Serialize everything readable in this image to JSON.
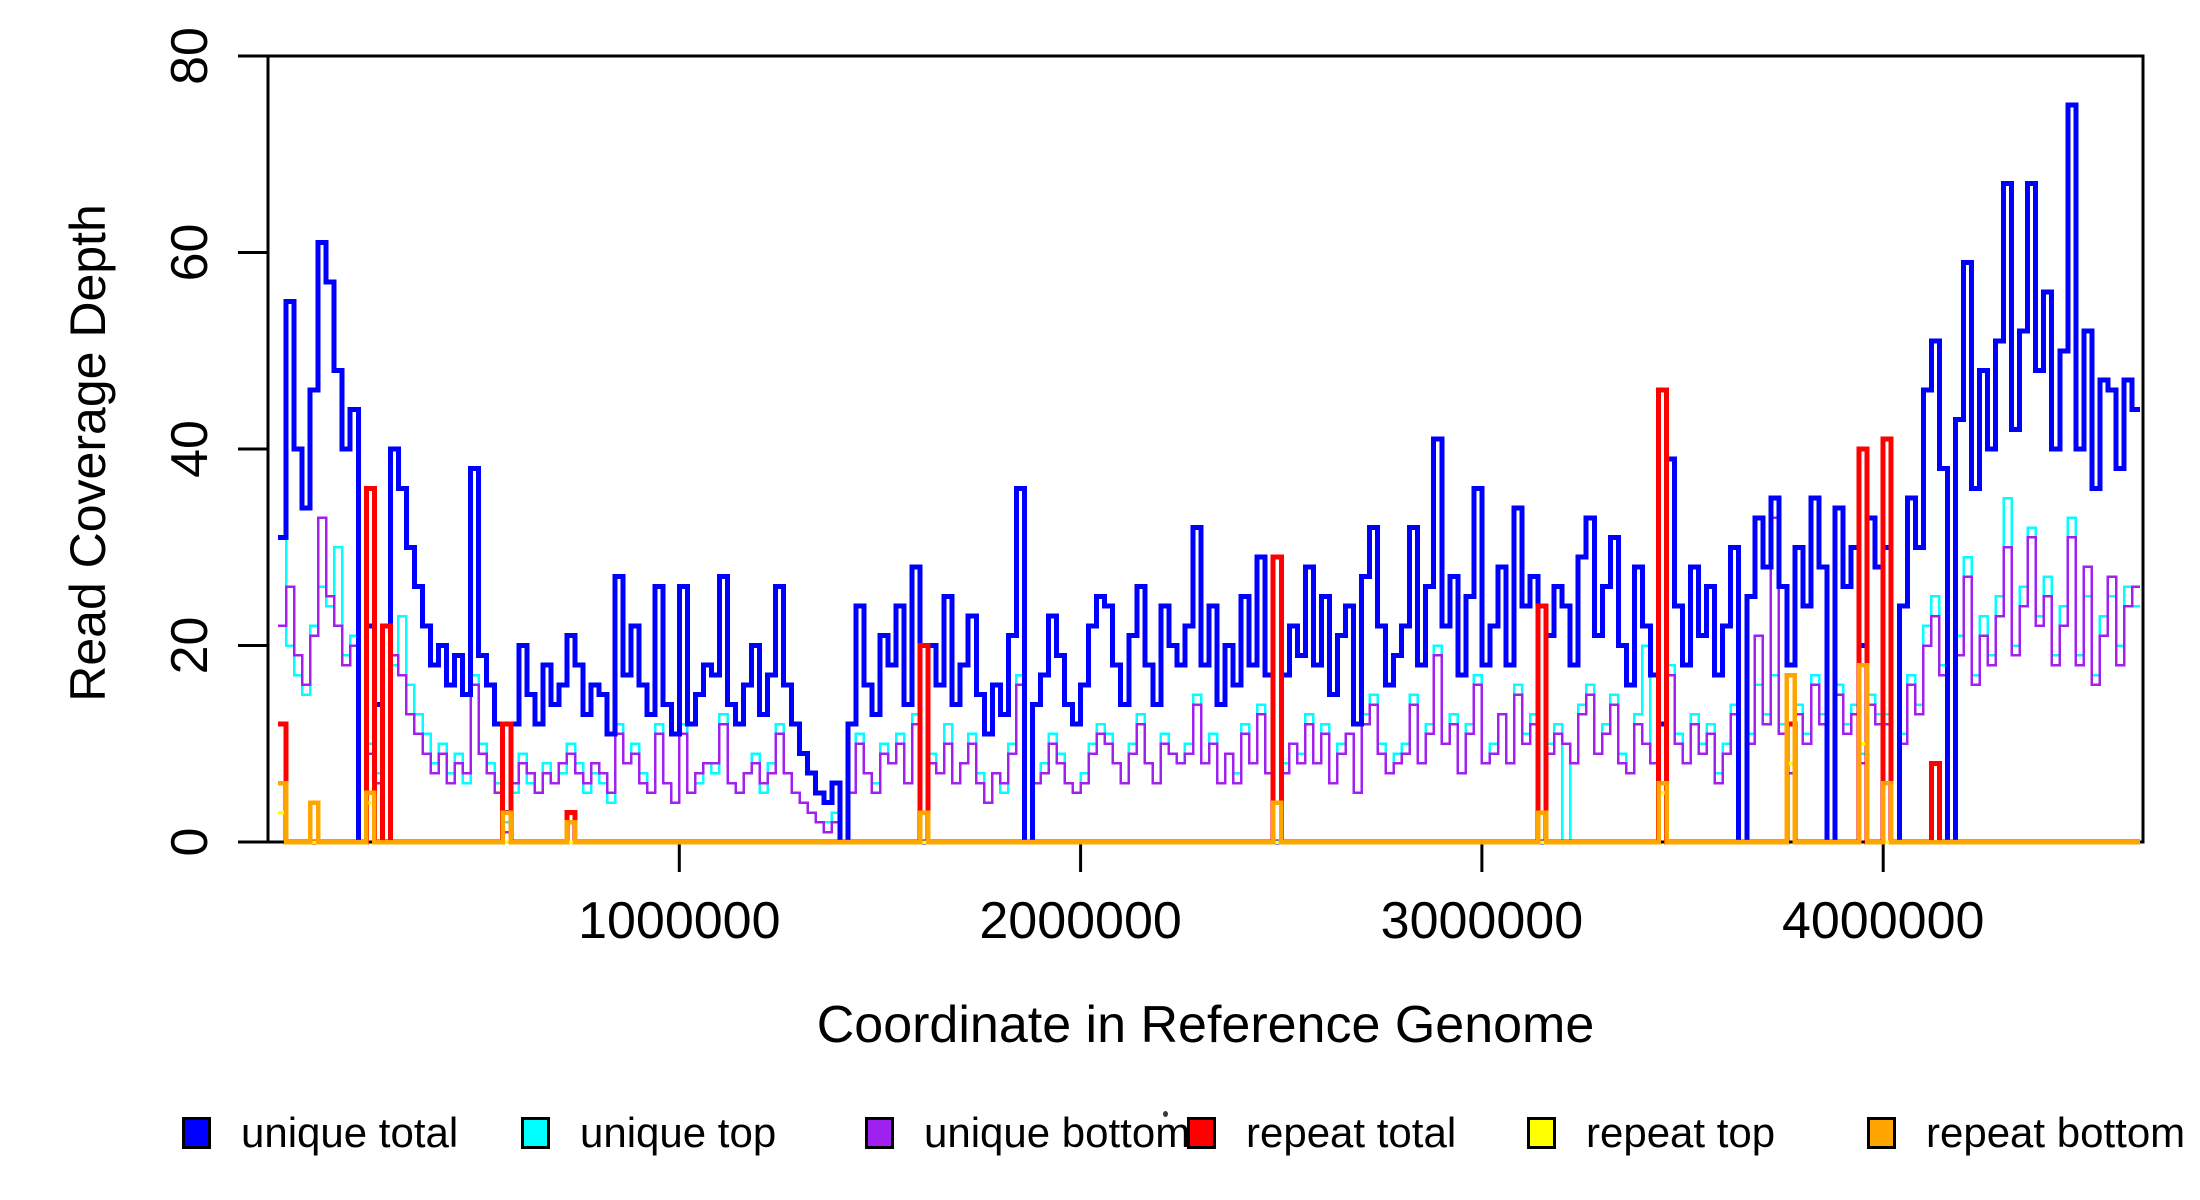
{
  "figure": {
    "background": "#ffffff",
    "frame_color": "#000000"
  },
  "chart_data": {
    "type": "line",
    "subtype": "step-coverage-plot",
    "title": "",
    "xlabel": "Coordinate in Reference Genome",
    "ylabel": "Read Coverage Depth",
    "xlim": [
      0,
      4640000
    ],
    "ylim": [
      0,
      80
    ],
    "grid": false,
    "legend_position": "bottom",
    "x_tick_values": [
      1000000,
      2000000,
      3000000,
      4000000
    ],
    "x_tick_labels": [
      "1000000",
      "2000000",
      "3000000",
      "4000000"
    ],
    "y_tick_values": [
      0,
      20,
      40,
      60,
      80
    ],
    "y_tick_labels": [
      "0",
      "20",
      "40",
      "60",
      "80"
    ],
    "bin_size": 20000,
    "n_bins": 232,
    "series": [
      {
        "name": "unique total",
        "color": "#0000ff",
        "values": [
          31,
          55,
          40,
          34,
          46,
          61,
          57,
          48,
          40,
          44,
          0,
          22,
          14,
          0,
          40,
          36,
          30,
          26,
          22,
          18,
          20,
          16,
          19,
          15,
          38,
          19,
          16,
          12,
          3,
          12,
          20,
          15,
          12,
          18,
          14,
          16,
          21,
          18,
          13,
          16,
          15,
          11,
          27,
          17,
          22,
          16,
          13,
          26,
          14,
          11,
          26,
          12,
          15,
          18,
          17,
          27,
          14,
          12,
          16,
          20,
          13,
          17,
          26,
          16,
          12,
          9,
          7,
          5,
          4,
          6,
          0,
          12,
          24,
          16,
          13,
          21,
          18,
          24,
          14,
          28,
          0,
          20,
          16,
          25,
          14,
          18,
          23,
          15,
          11,
          16,
          13,
          21,
          36,
          0,
          14,
          17,
          23,
          19,
          14,
          12,
          16,
          22,
          25,
          24,
          18,
          14,
          21,
          26,
          18,
          14,
          24,
          20,
          18,
          22,
          32,
          18,
          24,
          14,
          20,
          16,
          25,
          18,
          29,
          17,
          0,
          17,
          22,
          19,
          28,
          18,
          25,
          15,
          21,
          24,
          12,
          27,
          32,
          22,
          16,
          19,
          22,
          32,
          18,
          26,
          41,
          22,
          27,
          17,
          25,
          36,
          18,
          22,
          28,
          18,
          34,
          24,
          27,
          0,
          21,
          26,
          24,
          18,
          29,
          33,
          21,
          26,
          31,
          20,
          16,
          28,
          22,
          17,
          12,
          39,
          24,
          18,
          28,
          21,
          26,
          17,
          22,
          30,
          0,
          25,
          33,
          28,
          35,
          26,
          18,
          30,
          24,
          35,
          28,
          0,
          34,
          26,
          30,
          20,
          33,
          28,
          30,
          0,
          24,
          35,
          30,
          46,
          51,
          38,
          0,
          43,
          59,
          36,
          48,
          40,
          51,
          67,
          42,
          52,
          67,
          48,
          56,
          40,
          50,
          75,
          40,
          52,
          36,
          47,
          46,
          38,
          47,
          44
        ]
      },
      {
        "name": "unique top",
        "color": "#00ffff",
        "values": [
          31,
          20,
          17,
          15,
          22,
          26,
          24,
          30,
          19,
          21,
          0,
          10,
          7,
          0,
          18,
          23,
          16,
          13,
          11,
          8,
          10,
          7,
          9,
          6,
          17,
          10,
          8,
          6,
          2,
          5,
          9,
          6,
          5,
          8,
          6,
          7,
          10,
          8,
          5,
          7,
          6,
          4,
          12,
          8,
          10,
          7,
          5,
          12,
          6,
          4,
          12,
          5,
          6,
          8,
          7,
          13,
          6,
          5,
          7,
          9,
          5,
          8,
          12,
          7,
          5,
          4,
          3,
          2,
          2,
          3,
          0,
          5,
          11,
          7,
          6,
          10,
          8,
          11,
          6,
          13,
          0,
          9,
          7,
          12,
          6,
          8,
          11,
          7,
          4,
          7,
          5,
          10,
          17,
          0,
          6,
          8,
          11,
          9,
          6,
          5,
          7,
          10,
          12,
          11,
          8,
          6,
          10,
          13,
          8,
          6,
          11,
          9,
          8,
          10,
          15,
          8,
          11,
          6,
          9,
          7,
          12,
          8,
          14,
          7,
          0,
          8,
          10,
          9,
          13,
          8,
          12,
          6,
          10,
          11,
          5,
          13,
          15,
          10,
          7,
          9,
          10,
          15,
          8,
          12,
          20,
          10,
          13,
          7,
          12,
          17,
          8,
          10,
          13,
          8,
          16,
          11,
          13,
          0,
          10,
          12,
          0,
          8,
          14,
          16,
          9,
          12,
          15,
          9,
          7,
          13,
          20,
          8,
          5,
          18,
          11,
          8,
          13,
          10,
          12,
          7,
          10,
          14,
          0,
          11,
          16,
          13,
          17,
          12,
          8,
          14,
          11,
          17,
          13,
          0,
          16,
          12,
          14,
          9,
          15,
          13,
          13,
          0,
          11,
          17,
          14,
          22,
          25,
          18,
          0,
          21,
          29,
          17,
          23,
          19,
          25,
          35,
          20,
          26,
          32,
          23,
          27,
          19,
          24,
          33,
          19,
          25,
          17,
          23,
          25,
          20,
          26,
          24
        ]
      },
      {
        "name": "unique bottom",
        "color": "#a020f0",
        "values": [
          22,
          26,
          19,
          16,
          21,
          33,
          25,
          22,
          18,
          20,
          0,
          9,
          6,
          0,
          19,
          17,
          13,
          11,
          9,
          7,
          9,
          6,
          8,
          7,
          16,
          9,
          7,
          5,
          1,
          6,
          8,
          7,
          5,
          7,
          6,
          8,
          9,
          7,
          6,
          8,
          7,
          5,
          11,
          8,
          9,
          6,
          5,
          11,
          6,
          4,
          11,
          5,
          7,
          8,
          8,
          12,
          6,
          5,
          7,
          8,
          6,
          7,
          11,
          7,
          5,
          4,
          3,
          2,
          1,
          2,
          0,
          5,
          10,
          7,
          5,
          9,
          8,
          10,
          6,
          12,
          0,
          8,
          7,
          10,
          6,
          8,
          10,
          6,
          4,
          7,
          6,
          9,
          16,
          0,
          6,
          7,
          10,
          8,
          6,
          5,
          6,
          9,
          11,
          10,
          8,
          6,
          9,
          12,
          8,
          6,
          10,
          9,
          8,
          9,
          14,
          8,
          10,
          6,
          9,
          6,
          11,
          8,
          13,
          7,
          0,
          7,
          10,
          8,
          12,
          8,
          11,
          6,
          9,
          11,
          5,
          12,
          14,
          9,
          7,
          8,
          9,
          14,
          8,
          11,
          19,
          10,
          12,
          7,
          11,
          16,
          8,
          9,
          13,
          8,
          15,
          10,
          12,
          0,
          9,
          11,
          10,
          8,
          13,
          15,
          9,
          11,
          14,
          8,
          7,
          12,
          10,
          8,
          5,
          17,
          10,
          8,
          12,
          9,
          11,
          6,
          9,
          13,
          0,
          10,
          21,
          12,
          33,
          11,
          7,
          13,
          10,
          16,
          12,
          0,
          15,
          11,
          13,
          8,
          14,
          12,
          12,
          0,
          10,
          16,
          13,
          20,
          23,
          17,
          0,
          19,
          27,
          16,
          21,
          18,
          23,
          30,
          19,
          24,
          31,
          22,
          25,
          18,
          22,
          31,
          18,
          28,
          16,
          21,
          27,
          18,
          24,
          26
        ]
      },
      {
        "name": "repeat total",
        "color": "#ff0000",
        "base": 0,
        "spikes": {
          "0": 12,
          "11": 36,
          "13": 22,
          "28": 12,
          "36": 3,
          "80": 20,
          "124": 29,
          "157": 24,
          "172": 46,
          "188": 12,
          "197": 40,
          "200": 41,
          "206": 8
        }
      },
      {
        "name": "repeat top",
        "color": "#ffff00",
        "base": 0,
        "spikes": {
          "0": 3,
          "11": 4,
          "172": 5,
          "188": 8,
          "197": 10
        }
      },
      {
        "name": "repeat bottom",
        "color": "#ffa500",
        "base": 0,
        "spikes": {
          "0": 6,
          "4": 4,
          "11": 5,
          "28": 3,
          "36": 2,
          "80": 3,
          "124": 4,
          "157": 3,
          "172": 6,
          "188": 17,
          "197": 18,
          "200": 6
        }
      }
    ],
    "legend": [
      {
        "label": "unique total",
        "color": "#0000ff"
      },
      {
        "label": "unique top",
        "color": "#00ffff"
      },
      {
        "label": "unique bottom",
        "color": "#a020f0"
      },
      {
        "label": "repeat total",
        "color": "#ff0000"
      },
      {
        "label": "repeat top",
        "color": "#ffff00"
      },
      {
        "label": "repeat bottom",
        "color": "#ffa500"
      }
    ]
  }
}
